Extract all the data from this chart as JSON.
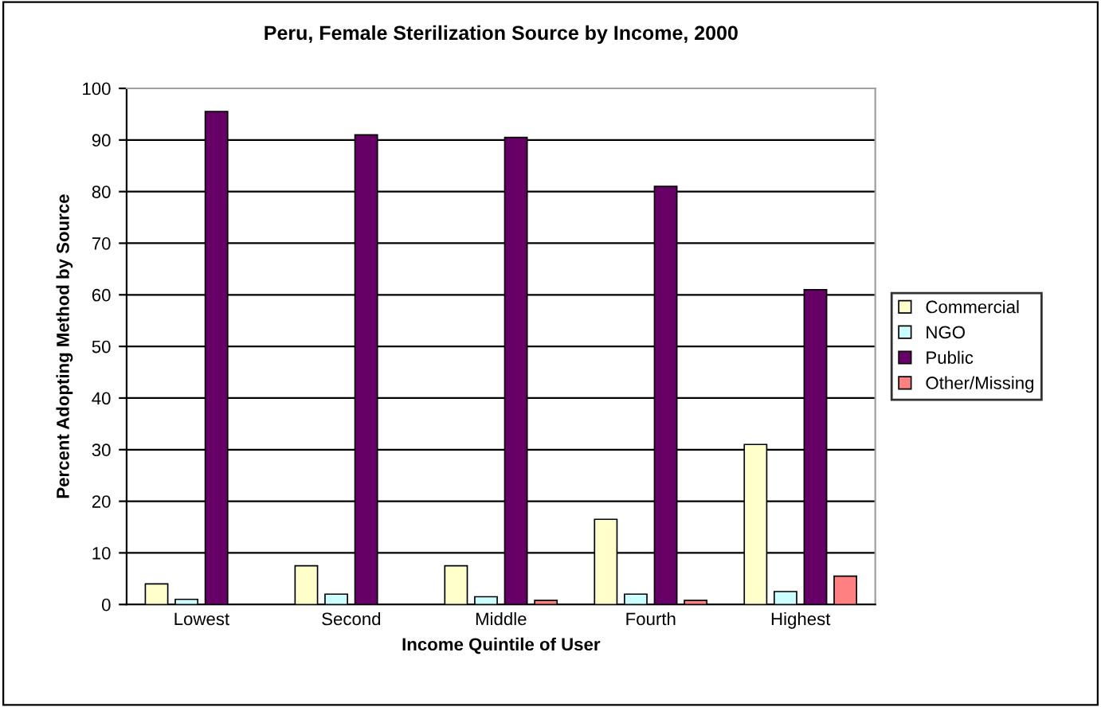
{
  "chart_data": {
    "type": "bar",
    "title": "Peru, Female Sterilization Source by Income, 2000",
    "xlabel": "Income Quintile of User",
    "ylabel": "Percent Adopting Method by Source",
    "categories": [
      "Lowest",
      "Second",
      "Middle",
      "Fourth",
      "Highest"
    ],
    "series": [
      {
        "name": "Commercial",
        "color": "#ffffcc",
        "values": [
          4,
          7.5,
          7.5,
          16.5,
          31
        ]
      },
      {
        "name": "NGO",
        "color": "#ccffff",
        "values": [
          1,
          2,
          1.5,
          2,
          2.5
        ]
      },
      {
        "name": "Public",
        "color": "#660066",
        "values": [
          95.5,
          91,
          90.5,
          81,
          61
        ]
      },
      {
        "name": "Other/Missing",
        "color": "#ff8080",
        "values": [
          null,
          null,
          0.8,
          0.8,
          5.5
        ]
      }
    ],
    "ylim": [
      0,
      100
    ],
    "yticks": [
      0,
      10,
      20,
      30,
      40,
      50,
      60,
      70,
      80,
      90,
      100
    ],
    "grid": "y",
    "legend": "right"
  }
}
